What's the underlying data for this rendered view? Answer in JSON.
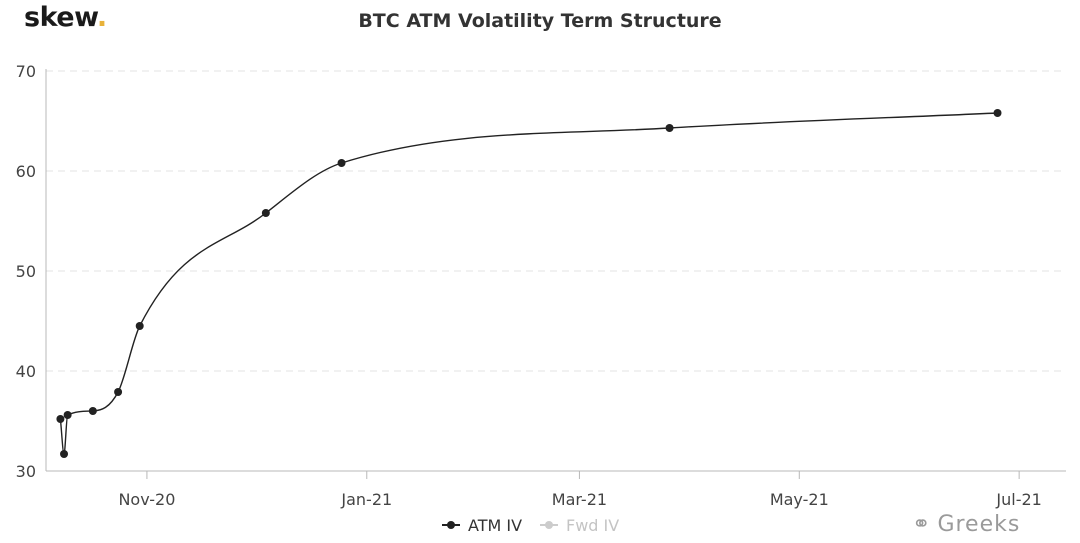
{
  "brand": {
    "logo_text": "skew",
    "logo_dot": "."
  },
  "watermark": {
    "icon": "wechat-icon",
    "text": "Greeks"
  },
  "chart_data": {
    "type": "line",
    "title": "BTC ATM Volatility Term Structure",
    "xlabel": "",
    "ylabel": "",
    "ylim": [
      30,
      70
    ],
    "yticks": [
      30,
      40,
      50,
      60,
      70
    ],
    "xlim": [
      "2020-10-04",
      "2021-07-14"
    ],
    "xticks": [
      {
        "date": "2020-11-01",
        "label": "Nov-20"
      },
      {
        "date": "2021-01-01",
        "label": "Jan-21"
      },
      {
        "date": "2021-03-01",
        "label": "Mar-21"
      },
      {
        "date": "2021-05-01",
        "label": "May-21"
      },
      {
        "date": "2021-07-01",
        "label": "Jul-21"
      }
    ],
    "grid": {
      "horizontal": true,
      "style": "dashed"
    },
    "legend_position": "bottom-center",
    "series": [
      {
        "name": "ATM IV",
        "color": "#222222",
        "visible": true,
        "points": [
          {
            "x": "2020-10-08",
            "y": 35.2
          },
          {
            "x": "2020-10-09",
            "y": 31.7
          },
          {
            "x": "2020-10-10",
            "y": 35.6
          },
          {
            "x": "2020-10-17",
            "y": 36.0
          },
          {
            "x": "2020-10-24",
            "y": 37.9
          },
          {
            "x": "2020-10-30",
            "y": 44.5
          },
          {
            "x": "2020-12-04",
            "y": 55.8
          },
          {
            "x": "2020-12-25",
            "y": 60.8
          },
          {
            "x": "2021-03-26",
            "y": 64.3
          },
          {
            "x": "2021-06-25",
            "y": 65.8
          }
        ]
      },
      {
        "name": "Fwd IV",
        "color": "#cccccc",
        "visible": false,
        "points": []
      }
    ]
  }
}
